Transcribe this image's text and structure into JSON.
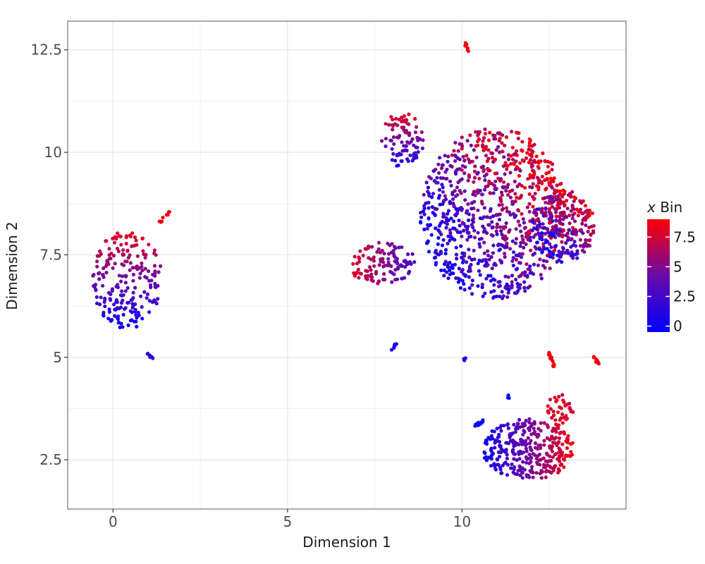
{
  "chart_data": {
    "type": "scatter",
    "title": "",
    "xlabel": "Dimension 1",
    "ylabel": "Dimension 2",
    "xlim": [
      -1.3,
      14.7
    ],
    "ylim": [
      1.3,
      13.2
    ],
    "x_ticks": [
      0,
      5,
      10
    ],
    "x_tick_labels": [
      "0",
      "5",
      "10"
    ],
    "y_ticks": [
      2.5,
      5,
      7.5,
      10,
      12.5
    ],
    "y_tick_labels": [
      "2.5",
      "5",
      "7.5",
      "10",
      "12.5"
    ],
    "grid": true,
    "legend": {
      "title_italic": "x",
      "title_rest": " Bin",
      "placement": "right",
      "range": [
        -0.5,
        9
      ],
      "breaks": [
        0,
        2.5,
        5,
        7.5
      ],
      "break_labels": [
        "0",
        "2.5",
        "5",
        "7.5"
      ],
      "low_color": "#0000ff",
      "high_color": "#ff0000"
    },
    "clusters": [
      {
        "name": "left-cluster",
        "cx": 0.4,
        "cy": 6.9,
        "rx": 1.0,
        "ry": 1.2,
        "n": 220,
        "grad": "y",
        "vmin": 0,
        "vmax": 8.5
      },
      {
        "name": "left-tail-top",
        "x0": 1.3,
        "y0": 8.25,
        "x1": 1.65,
        "y1": 8.55,
        "n": 10,
        "v": 8.5
      },
      {
        "name": "left-tail-bottom",
        "x0": 1.0,
        "y0": 5.1,
        "x1": 1.15,
        "y1": 4.95,
        "n": 8,
        "v": 1.5
      },
      {
        "name": "main-cluster",
        "cx": 10.9,
        "cy": 8.5,
        "rx": 2.1,
        "ry": 2.1,
        "n": 900,
        "grad": "mix",
        "vmin": 0,
        "vmax": 8.8
      },
      {
        "name": "right-lobe",
        "cx": 12.9,
        "cy": 8.2,
        "rx": 0.9,
        "ry": 0.9,
        "n": 220,
        "grad": "mix",
        "vmin": 0,
        "vmax": 8.8
      },
      {
        "name": "left-arc",
        "cx": 7.7,
        "cy": 7.3,
        "rx": 1.0,
        "ry": 0.5,
        "n": 120,
        "grad": "x",
        "vmin": 8.5,
        "vmax": 2.5
      },
      {
        "name": "upper-arc",
        "cx": 8.3,
        "cy": 10.3,
        "rx": 0.6,
        "ry": 0.7,
        "n": 90,
        "grad": "y",
        "vmin": 0.5,
        "vmax": 8.5
      },
      {
        "name": "top-outlier",
        "x0": 10.1,
        "y0": 12.65,
        "x1": 10.2,
        "y1": 12.45,
        "n": 10,
        "v": 8.8
      },
      {
        "name": "bottom-cluster",
        "cx": 11.9,
        "cy": 2.75,
        "rx": 1.3,
        "ry": 0.75,
        "n": 330,
        "grad": "x",
        "vmin": 0,
        "vmax": 8.8
      },
      {
        "name": "bottom-upper",
        "cx": 12.8,
        "cy": 3.7,
        "rx": 0.4,
        "ry": 0.4,
        "n": 40,
        "grad": "none",
        "vmin": 7,
        "vmax": 8.8
      },
      {
        "name": "mid-streak",
        "x0": 12.5,
        "y0": 5.1,
        "x1": 12.65,
        "y1": 4.75,
        "n": 14,
        "v": 8.5
      },
      {
        "name": "far-right",
        "x0": 13.75,
        "y0": 5.05,
        "x1": 13.95,
        "y1": 4.8,
        "n": 10,
        "v": 8.8
      },
      {
        "name": "small-blue-a",
        "x0": 8.0,
        "y0": 5.2,
        "x1": 8.15,
        "y1": 5.35,
        "n": 8,
        "v": 0.5
      },
      {
        "name": "small-blue-b",
        "x0": 10.0,
        "y0": 4.85,
        "x1": 10.1,
        "y1": 5.0,
        "n": 6,
        "v": 0.5
      },
      {
        "name": "small-blue-c",
        "x0": 10.4,
        "y0": 3.35,
        "x1": 10.6,
        "y1": 3.45,
        "n": 12,
        "v": 0.3
      },
      {
        "name": "small-blue-d",
        "x0": 11.3,
        "y0": 4.0,
        "x1": 11.35,
        "y1": 4.05,
        "n": 4,
        "v": 0.2
      }
    ]
  }
}
